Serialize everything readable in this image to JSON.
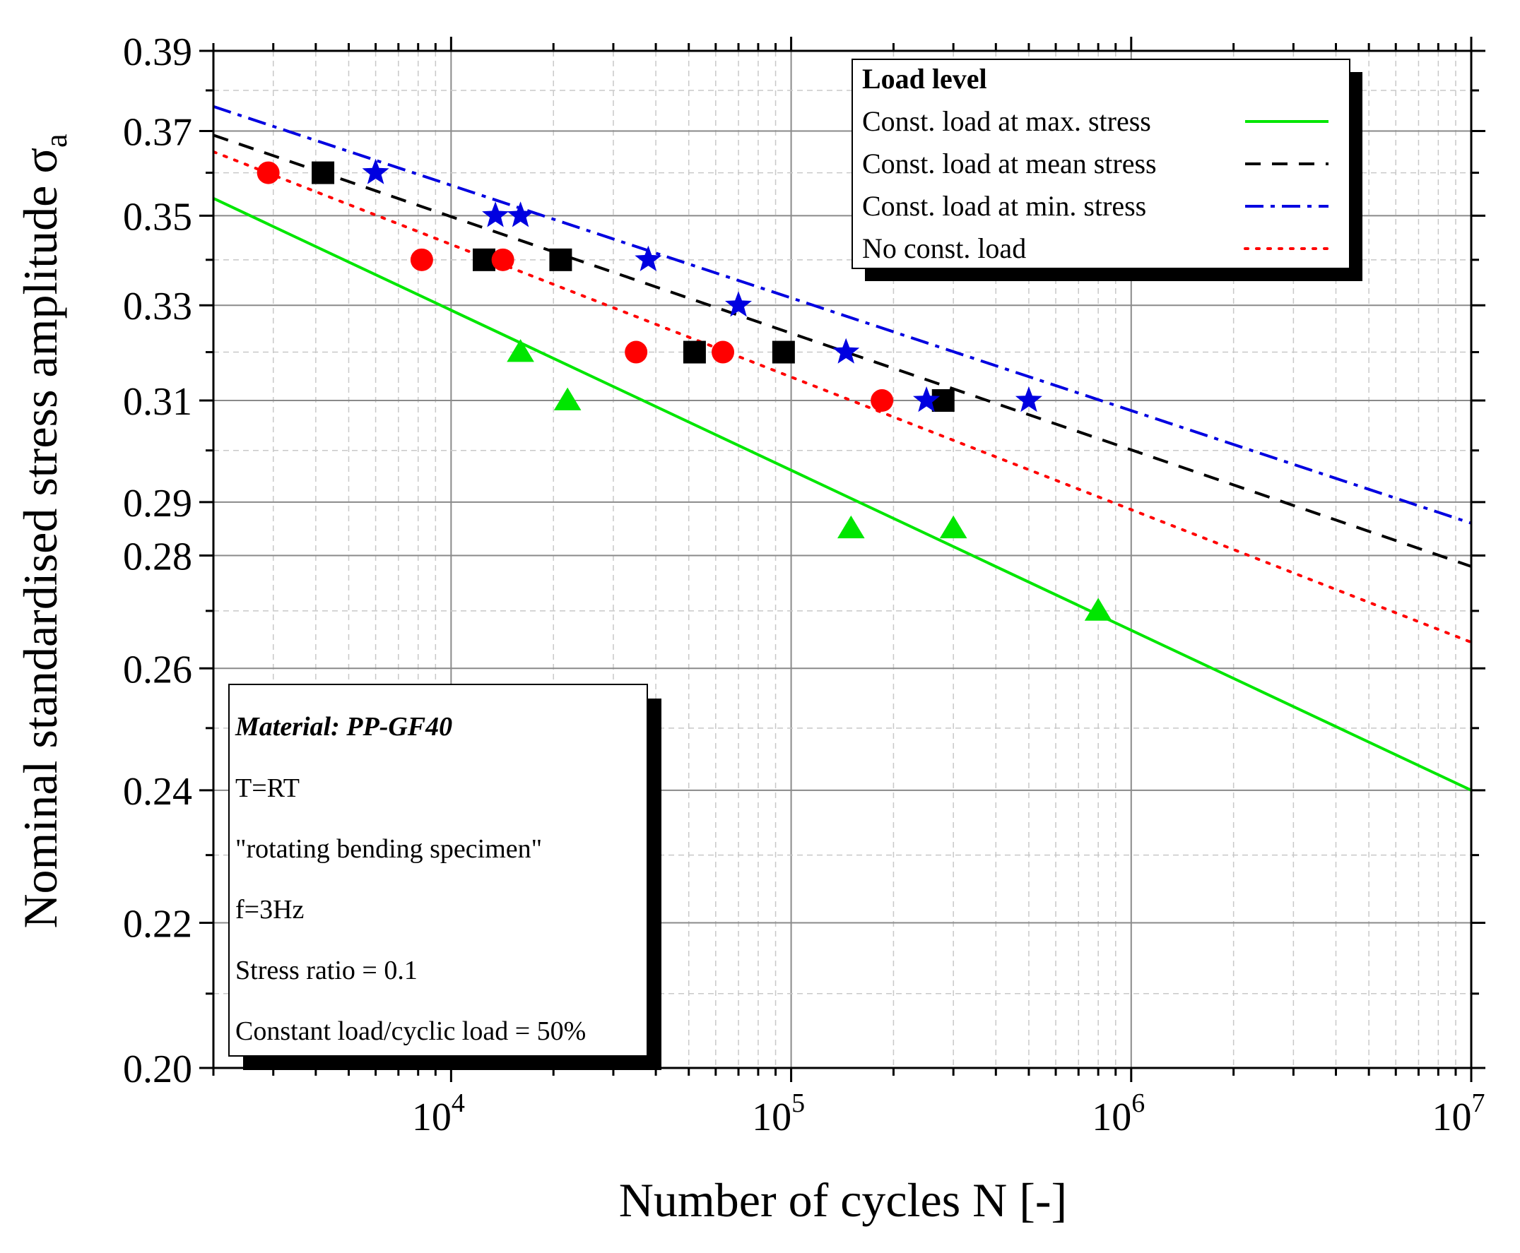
{
  "chart_data": {
    "type": "scatter",
    "x_scale": "log",
    "y_scale": "log",
    "xlim": [
      2000,
      10000000
    ],
    "ylim": [
      0.2,
      0.39
    ],
    "xlabel": "Number of cycles N [-]",
    "ylabel_main": "Nominal standardised stress amplitude ",
    "ylabel_symbol": "σ",
    "ylabel_sub": "a",
    "x_major_ticks": [
      {
        "value": 10000,
        "base": "10",
        "exp": "4"
      },
      {
        "value": 100000,
        "base": "10",
        "exp": "5"
      },
      {
        "value": 1000000,
        "base": "10",
        "exp": "6"
      },
      {
        "value": 10000000,
        "base": "10",
        "exp": "7"
      }
    ],
    "y_major_ticks": [
      {
        "value": 0.2,
        "label": "0.20"
      },
      {
        "value": 0.22,
        "label": "0.22"
      },
      {
        "value": 0.24,
        "label": "0.24"
      },
      {
        "value": 0.26,
        "label": "0.26"
      },
      {
        "value": 0.28,
        "label": "0.28"
      },
      {
        "value": 0.29,
        "label": "0.29"
      },
      {
        "value": 0.31,
        "label": "0.31"
      },
      {
        "value": 0.33,
        "label": "0.33"
      },
      {
        "value": 0.35,
        "label": "0.35"
      },
      {
        "value": 0.37,
        "label": "0.37"
      },
      {
        "value": 0.39,
        "label": "0.39"
      }
    ],
    "y_minor_ticks": [
      0.21,
      0.23,
      0.25,
      0.27,
      0.3,
      0.32,
      0.34,
      0.36,
      0.38
    ],
    "grid": true,
    "series": [
      {
        "name": "Const. load at max. stress",
        "color": "#00e600",
        "marker": "triangle",
        "line_style": "solid",
        "points": [
          [
            16000,
            0.32
          ],
          [
            22000,
            0.31
          ],
          [
            150000,
            0.285
          ],
          [
            300000,
            0.285
          ],
          [
            800000,
            0.27
          ]
        ],
        "fit_line": [
          [
            2000,
            0.354
          ],
          [
            10000000,
            0.24
          ]
        ]
      },
      {
        "name": "Const. load at mean stress",
        "color": "#000000",
        "marker": "square",
        "line_style": "dashed",
        "points": [
          [
            4200,
            0.36
          ],
          [
            12500,
            0.34
          ],
          [
            21000,
            0.34
          ],
          [
            52000,
            0.32
          ],
          [
            95000,
            0.32
          ],
          [
            280000,
            0.31
          ]
        ],
        "fit_line": [
          [
            2000,
            0.369
          ],
          [
            10000000,
            0.278
          ]
        ]
      },
      {
        "name": "Const. load at min. stress",
        "color": "#0000e0",
        "marker": "star",
        "line_style": "dashdot",
        "points": [
          [
            6000,
            0.36
          ],
          [
            13500,
            0.35
          ],
          [
            16000,
            0.35
          ],
          [
            38000,
            0.34
          ],
          [
            70000,
            0.33
          ],
          [
            145000,
            0.32
          ],
          [
            250000,
            0.31
          ],
          [
            500000,
            0.31
          ]
        ],
        "fit_line": [
          [
            2000,
            0.376
          ],
          [
            10000000,
            0.286
          ]
        ]
      },
      {
        "name": "No const. load",
        "color": "#ff0000",
        "marker": "circle",
        "line_style": "dotted",
        "points": [
          [
            2900,
            0.36
          ],
          [
            8200,
            0.34
          ],
          [
            14200,
            0.34
          ],
          [
            35000,
            0.32
          ],
          [
            63000,
            0.32
          ],
          [
            185000,
            0.31
          ]
        ],
        "fit_line": [
          [
            2000,
            0.365
          ],
          [
            10000000,
            0.2645
          ]
        ]
      }
    ],
    "legend": {
      "title": "Load level",
      "position": "top-right"
    },
    "info_box": {
      "position": "bottom-left",
      "title": "Material: PP-GF40",
      "lines": [
        "T=RT",
        "\"rotating bending specimen\"",
        "f=3Hz",
        "Stress ratio = 0.1",
        "Constant load/cyclic load = 50%"
      ]
    }
  }
}
